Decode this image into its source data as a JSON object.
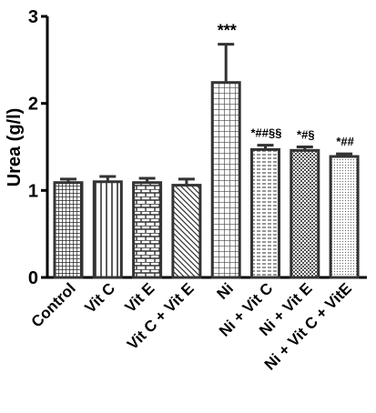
{
  "chart_data": {
    "type": "bar",
    "title": "",
    "xlabel": "",
    "ylabel": "Urea (g/l)",
    "ylim": [
      0,
      3
    ],
    "yticks": [
      0,
      1,
      2,
      3
    ],
    "grid": false,
    "categories": [
      "Control",
      "Vit C",
      "Vit E",
      "Vit C + Vit E",
      "Ni",
      "Ni + Vit C",
      "Ni + Vit E",
      "Ni + Vit C + VitE"
    ],
    "values": [
      1.09,
      1.1,
      1.09,
      1.06,
      2.24,
      1.47,
      1.46,
      1.39
    ],
    "errors": [
      0.04,
      0.06,
      0.05,
      0.07,
      0.44,
      0.05,
      0.04,
      0.03
    ],
    "patterns": [
      "dense-grid",
      "vertical-stripes",
      "brick",
      "diagonal-hatch",
      "square-grid",
      "horizontal-dashes",
      "checkerboard",
      "dots"
    ],
    "annotations": [
      "",
      "",
      "",
      "",
      "***",
      "*##§§",
      "*#§",
      "*##"
    ]
  }
}
